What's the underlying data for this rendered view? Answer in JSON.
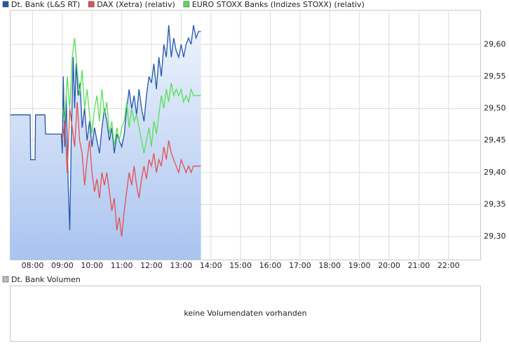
{
  "chart_data": [
    {
      "type": "line",
      "xlim": [
        "07:14",
        "23:04"
      ],
      "ylim": [
        29.264,
        29.654
      ],
      "xticks": [
        "08:00",
        "09:00",
        "10:00",
        "11:00",
        "12:00",
        "13:00",
        "14:00",
        "15:00",
        "16:00",
        "17:00",
        "18:00",
        "19:00",
        "20:00",
        "21:00",
        "22:00"
      ],
      "yticks": [
        {
          "value": 29.3,
          "label": "29,30"
        },
        {
          "value": 29.35,
          "label": "29,35"
        },
        {
          "value": 29.4,
          "label": "29,40"
        },
        {
          "value": 29.45,
          "label": "29,45"
        },
        {
          "value": 29.5,
          "label": "29,50"
        },
        {
          "value": 29.55,
          "label": "29,55"
        },
        {
          "value": 29.6,
          "label": "29,60"
        }
      ],
      "grid": true,
      "legend": "top-left",
      "series": [
        {
          "name": "Dt. Bank (L&S RT)",
          "color": "#2255aa",
          "area": true,
          "x": [
            "07:15",
            "07:55",
            "07:56",
            "08:05",
            "08:06",
            "08:25",
            "08:26",
            "08:58",
            "09:00",
            "09:02",
            "09:05",
            "09:08",
            "09:12",
            "09:15",
            "09:18",
            "09:22",
            "09:25",
            "09:28",
            "09:32",
            "09:36",
            "09:40",
            "09:45",
            "09:50",
            "09:55",
            "10:00",
            "10:05",
            "10:10",
            "10:15",
            "10:20",
            "10:25",
            "10:30",
            "10:35",
            "10:40",
            "10:45",
            "10:50",
            "10:55",
            "11:00",
            "11:05",
            "11:10",
            "11:15",
            "11:20",
            "11:25",
            "11:30",
            "11:35",
            "11:40",
            "11:45",
            "11:50",
            "11:55",
            "12:00",
            "12:05",
            "12:10",
            "12:15",
            "12:20",
            "12:25",
            "12:30",
            "12:35",
            "12:40",
            "12:45",
            "12:50",
            "12:55",
            "13:00",
            "13:05",
            "13:10",
            "13:15",
            "13:20",
            "13:25",
            "13:30",
            "13:35",
            "13:40"
          ],
          "values": [
            29.49,
            29.49,
            29.42,
            29.42,
            29.49,
            29.49,
            29.46,
            29.46,
            29.43,
            29.55,
            29.44,
            29.52,
            29.38,
            29.31,
            29.45,
            29.58,
            29.5,
            29.57,
            29.52,
            29.54,
            29.47,
            29.5,
            29.45,
            29.48,
            29.44,
            29.47,
            29.45,
            29.43,
            29.47,
            29.5,
            29.48,
            29.45,
            29.47,
            29.43,
            29.46,
            29.45,
            29.44,
            29.46,
            29.5,
            29.53,
            29.5,
            29.52,
            29.49,
            29.53,
            29.5,
            29.48,
            29.52,
            29.55,
            29.54,
            29.57,
            29.53,
            29.58,
            29.55,
            29.6,
            29.58,
            29.63,
            29.58,
            29.61,
            29.59,
            29.58,
            29.6,
            29.58,
            29.6,
            29.61,
            29.6,
            29.63,
            29.61,
            29.62,
            29.62
          ]
        },
        {
          "name": "DAX (Xetra) (relativ)",
          "color": "#e35050",
          "area": false,
          "x": [
            "09:00",
            "09:05",
            "09:10",
            "09:15",
            "09:20",
            "09:25",
            "09:30",
            "09:35",
            "09:40",
            "09:45",
            "09:50",
            "09:55",
            "10:00",
            "10:05",
            "10:10",
            "10:15",
            "10:20",
            "10:25",
            "10:30",
            "10:35",
            "10:40",
            "10:45",
            "10:50",
            "10:55",
            "11:00",
            "11:05",
            "11:10",
            "11:15",
            "11:20",
            "11:25",
            "11:30",
            "11:35",
            "11:40",
            "11:45",
            "11:50",
            "11:55",
            "12:00",
            "12:05",
            "12:10",
            "12:15",
            "12:20",
            "12:25",
            "12:30",
            "12:35",
            "12:40",
            "12:45",
            "12:50",
            "12:55",
            "13:00",
            "13:05",
            "13:10",
            "13:15",
            "13:20",
            "13:25",
            "13:30",
            "13:40"
          ],
          "values": [
            29.45,
            29.48,
            29.4,
            29.5,
            29.47,
            29.44,
            29.51,
            29.45,
            29.43,
            29.38,
            29.42,
            29.45,
            29.4,
            29.37,
            29.39,
            29.36,
            29.4,
            29.38,
            29.4,
            29.37,
            29.34,
            29.36,
            29.31,
            29.33,
            29.3,
            29.34,
            29.37,
            29.4,
            29.38,
            29.41,
            29.38,
            29.36,
            29.39,
            29.41,
            29.39,
            29.42,
            29.41,
            29.43,
            29.4,
            29.42,
            29.41,
            29.44,
            29.42,
            29.45,
            29.43,
            29.42,
            29.41,
            29.4,
            29.42,
            29.41,
            29.4,
            29.41,
            29.4,
            29.41,
            29.41,
            29.41
          ]
        },
        {
          "name": "EURO STOXX Banks (Indizes STOXX) (relativ)",
          "color": "#55e055",
          "area": false,
          "x": [
            "09:00",
            "09:05",
            "09:10",
            "09:15",
            "09:20",
            "09:25",
            "09:30",
            "09:35",
            "09:40",
            "09:45",
            "09:50",
            "09:55",
            "10:00",
            "10:05",
            "10:10",
            "10:15",
            "10:20",
            "10:25",
            "10:30",
            "10:35",
            "10:40",
            "10:45",
            "10:50",
            "10:55",
            "11:00",
            "11:05",
            "11:10",
            "11:15",
            "11:20",
            "11:25",
            "11:30",
            "11:35",
            "11:40",
            "11:45",
            "11:50",
            "11:55",
            "12:00",
            "12:05",
            "12:10",
            "12:15",
            "12:20",
            "12:25",
            "12:30",
            "12:35",
            "12:40",
            "12:45",
            "12:50",
            "12:55",
            "13:00",
            "13:05",
            "13:10",
            "13:15",
            "13:20",
            "13:25",
            "13:30",
            "13:40"
          ],
          "values": [
            29.5,
            29.48,
            29.55,
            29.5,
            29.58,
            29.61,
            29.56,
            29.52,
            29.56,
            29.5,
            29.53,
            29.49,
            29.46,
            29.5,
            29.52,
            29.48,
            29.53,
            29.49,
            29.51,
            29.46,
            29.48,
            29.44,
            29.47,
            29.45,
            29.47,
            29.48,
            29.51,
            29.47,
            29.5,
            29.48,
            29.49,
            29.47,
            29.45,
            29.43,
            29.45,
            29.47,
            29.44,
            29.48,
            29.46,
            29.49,
            29.52,
            29.5,
            29.53,
            29.51,
            29.54,
            29.52,
            29.53,
            29.52,
            29.53,
            29.51,
            29.52,
            29.51,
            29.53,
            29.52,
            29.52,
            29.52
          ]
        }
      ]
    },
    {
      "type": "volume",
      "series": [
        {
          "name": "Dt. Bank Volumen",
          "color": "#bbbbbb"
        }
      ],
      "note": "keine Volumendaten vorhanden"
    }
  ]
}
